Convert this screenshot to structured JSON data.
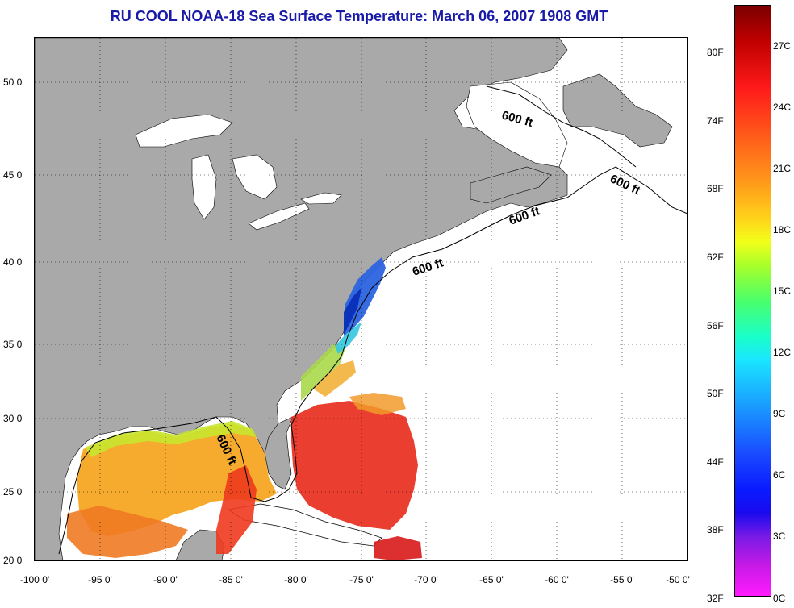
{
  "title": "RU COOL  NOAA-18  Sea Surface Temperature:  March 06, 2007 1908 GMT",
  "latitude_labels": [
    "50 0'",
    "45 0'",
    "40 0'",
    "35 0'",
    "30 0'",
    "25 0'",
    "20 0'"
  ],
  "longitude_labels": [
    "-100 0'",
    "-95 0'",
    "-90 0'",
    "-85 0'",
    "-80 0'",
    "-75 0'",
    "-70 0'",
    "-65 0'",
    "-60 0'",
    "-55 0'",
    "-50 0'"
  ],
  "contour_labels": [
    "600 ft",
    "600 ft",
    "600 ft",
    "600 ft",
    "600 ft"
  ],
  "colorbar": {
    "fahrenheit_labels": [
      "80F",
      "74F",
      "68F",
      "62F",
      "56F",
      "50F",
      "44F",
      "38F",
      "32F"
    ],
    "celsius_labels": [
      "27C",
      "24C",
      "21C",
      "18C",
      "15C",
      "12C",
      "9C",
      "6C",
      "3C",
      "0C"
    ]
  },
  "colors": {
    "land": "#a9a9a9",
    "ocean_no_data": "#ffffff",
    "title": "#1a1aa8"
  }
}
